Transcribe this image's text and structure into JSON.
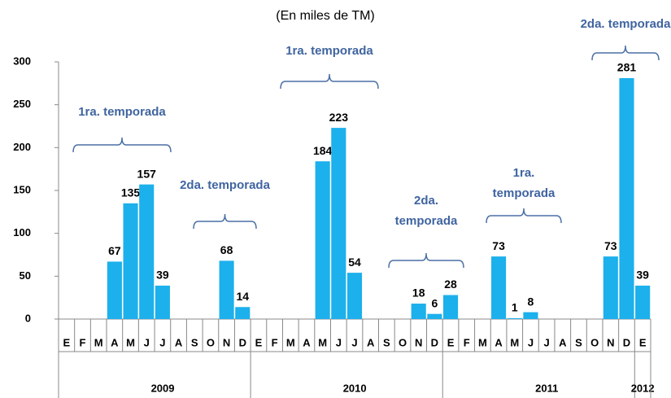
{
  "chart_data": {
    "type": "bar",
    "subtitle": "(En miles de TM)",
    "categories": [
      "E",
      "F",
      "M",
      "A",
      "M",
      "J",
      "J",
      "A",
      "S",
      "O",
      "N",
      "D",
      "E",
      "F",
      "M",
      "A",
      "M",
      "J",
      "J",
      "A",
      "S",
      "O",
      "N",
      "D",
      "E",
      "F",
      "M",
      "A",
      "M",
      "J",
      "J",
      "A",
      "S",
      "O",
      "N",
      "D",
      "E"
    ],
    "values": [
      null,
      null,
      null,
      67,
      135,
      157,
      39,
      null,
      null,
      null,
      68,
      14,
      null,
      null,
      null,
      null,
      184,
      223,
      54,
      null,
      null,
      null,
      18,
      6,
      28,
      null,
      null,
      73,
      1,
      8,
      null,
      null,
      null,
      null,
      73,
      281,
      39
    ],
    "years": [
      "2009",
      "2010",
      "2011",
      "2012"
    ],
    "color": "#1cb0ec",
    "ylim": [
      0,
      300
    ],
    "yticks": [
      0,
      50,
      100,
      150,
      200,
      250,
      300
    ],
    "grid": false,
    "annotations": [
      [
        "1ra. temporada"
      ],
      [
        "2da. temporada"
      ],
      [
        "1ra. temporada"
      ],
      [
        "2da.",
        "temporada"
      ],
      [
        "1ra.",
        "temporada"
      ],
      [
        "2da. temporada"
      ]
    ]
  }
}
